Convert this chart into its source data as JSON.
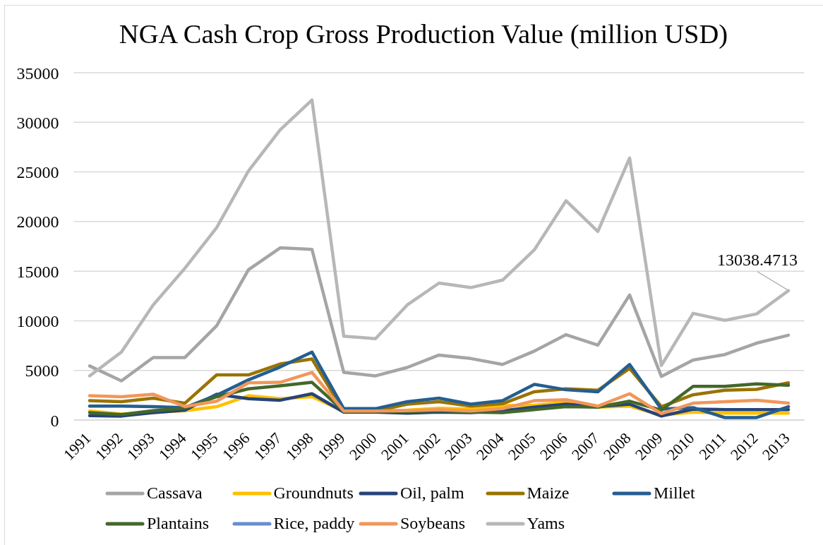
{
  "chart_data": {
    "type": "line",
    "title": "NGA Cash Crop Gross Production Value (million USD)",
    "categories": [
      "1991",
      "1992",
      "1993",
      "1994",
      "1995",
      "1996",
      "1997",
      "1998",
      "1999",
      "2000",
      "2001",
      "2002",
      "2003",
      "2004",
      "2005",
      "2006",
      "2007",
      "2008",
      "2009",
      "2010",
      "2011",
      "2012",
      "2013"
    ],
    "series": [
      {
        "name": "Cassava",
        "color": "#a5a5a5",
        "values": [
          5450,
          3950,
          6300,
          6300,
          9500,
          15150,
          17350,
          17200,
          4800,
          4450,
          5300,
          6550,
          6200,
          5600,
          6950,
          8600,
          7550,
          12600,
          4400,
          6050,
          6600,
          7750,
          8550
        ]
      },
      {
        "name": "Groundnuts",
        "color": "#ffc000",
        "values": [
          900,
          600,
          750,
          950,
          1350,
          2450,
          2150,
          2350,
          900,
          900,
          1000,
          1200,
          1100,
          1450,
          1500,
          1800,
          1300,
          1400,
          500,
          800,
          700,
          700,
          700
        ]
      },
      {
        "name": "Oil, palm",
        "color": "#264478",
        "values": [
          450,
          400,
          750,
          1000,
          2600,
          2150,
          2000,
          2650,
          800,
          800,
          700,
          800,
          750,
          950,
          1300,
          1600,
          1350,
          1600,
          400,
          1100,
          1050,
          1050,
          1050
        ]
      },
      {
        "name": "Maize",
        "color": "#997300",
        "values": [
          1950,
          1850,
          2200,
          1700,
          4550,
          4550,
          5650,
          6150,
          900,
          900,
          1600,
          1850,
          1400,
          1650,
          2850,
          3150,
          3000,
          5200,
          1350,
          2550,
          3000,
          3100,
          3750
        ]
      },
      {
        "name": "Millet",
        "color": "#255e91",
        "values": [
          1400,
          1400,
          1350,
          1250,
          2500,
          4050,
          5350,
          6850,
          1150,
          1150,
          1850,
          2200,
          1600,
          1950,
          3600,
          3050,
          2850,
          5600,
          1100,
          1250,
          250,
          250,
          1350
        ]
      },
      {
        "name": "Plantains",
        "color": "#43682b",
        "values": [
          750,
          550,
          950,
          1200,
          2350,
          3150,
          3450,
          3800,
          900,
          900,
          850,
          950,
          800,
          750,
          1050,
          1350,
          1300,
          1900,
          1000,
          3400,
          3400,
          3650,
          3500
        ]
      },
      {
        "name": "Rice, paddy",
        "color": "#698ed0",
        "values": [
          null,
          null,
          null,
          null,
          null,
          null,
          null,
          null,
          null,
          null,
          null,
          null,
          null,
          null,
          null,
          null,
          null,
          null,
          null,
          null,
          null,
          null,
          null
        ]
      },
      {
        "name": "Soybeans",
        "color": "#f1975a",
        "values": [
          2450,
          2350,
          2600,
          1350,
          1900,
          3750,
          3800,
          4800,
          900,
          900,
          950,
          1050,
          900,
          1150,
          1950,
          2050,
          1400,
          2650,
          650,
          1700,
          1850,
          2000,
          1700
        ]
      },
      {
        "name": "Yams",
        "color": "#b7b7b7",
        "values": [
          4450,
          6850,
          11600,
          15300,
          19400,
          25100,
          29250,
          32250,
          8450,
          8200,
          11600,
          13800,
          13350,
          14100,
          17150,
          22100,
          19000,
          26400,
          5500,
          10750,
          10050,
          10700,
          13038.4713
        ]
      }
    ],
    "ylim": [
      0,
      35000
    ],
    "yticks": [
      0,
      5000,
      10000,
      15000,
      20000,
      25000,
      30000,
      35000
    ],
    "grid": "y",
    "legend": "bottom",
    "marker": "none",
    "line_style": "solid",
    "annotations": [
      {
        "text": "13038.4713",
        "x": "2013",
        "y": 13038.4713
      }
    ]
  }
}
